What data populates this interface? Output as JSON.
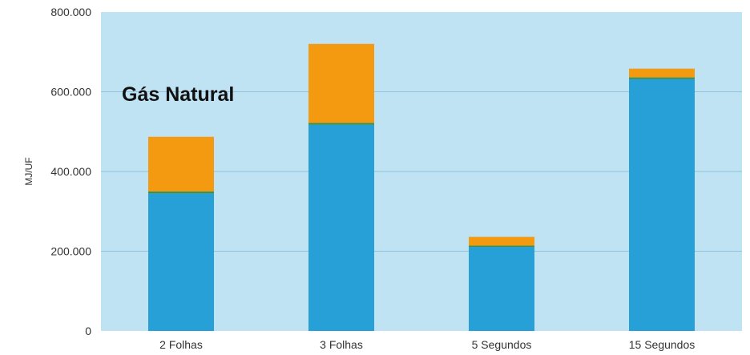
{
  "chart_data": {
    "type": "bar",
    "stacked": true,
    "title": "Gás Natural",
    "ylabel": "MJ/UF",
    "xlabel": "",
    "ylim": [
      0,
      800000
    ],
    "yticks": [
      0,
      200000,
      400000,
      600000,
      800000
    ],
    "ytick_labels": [
      "0",
      "200.000",
      "400.000",
      "600.000",
      "800.000"
    ],
    "grid": true,
    "legend": "none",
    "categories": [
      "2 Folhas",
      "3 Folhas",
      "5 Segundos",
      "15 Segundos"
    ],
    "series": [
      {
        "values": [
          345000,
          517000,
          211000,
          632000
        ],
        "color": "#27a0d8"
      },
      {
        "values": [
          5000,
          5000,
          3000,
          4000
        ],
        "color": "#3f8f48"
      },
      {
        "values": [
          137000,
          198000,
          22000,
          22000
        ],
        "color": "#f39a10"
      }
    ]
  },
  "colors": {
    "plot_background": "#bfe3f3",
    "gridline": "#8fc3dc"
  }
}
